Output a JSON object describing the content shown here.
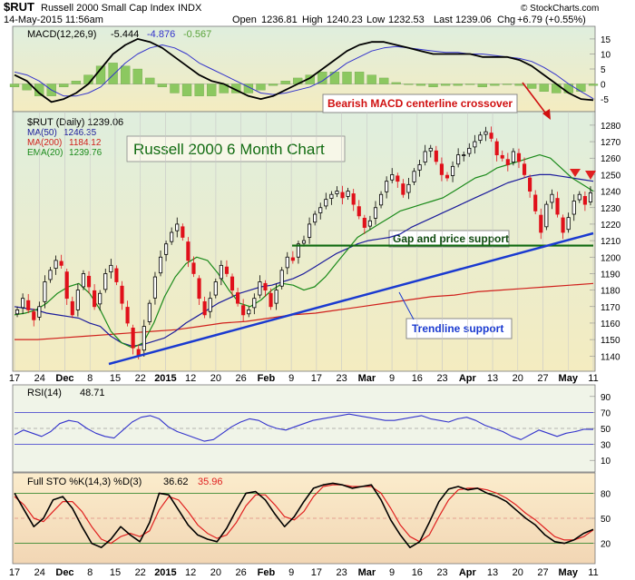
{
  "header": {
    "symbol": "$RUT",
    "name": "Russell 2000 Small Cap Index",
    "exchange": "INDX",
    "date": "14-May-2015 11:56am",
    "open_label": "Open",
    "open": "1236.81",
    "high_label": "High",
    "high": "1240.23",
    "low_label": "Low",
    "low": "1232.53",
    "last_label": "Last",
    "last": "1239.06",
    "chg_label": "Chg",
    "chg": "+6.79 (+0.55%)",
    "copyright": "© StockCharts.com"
  },
  "colors": {
    "bg_gradient_top": "#dfeede",
    "bg_gradient_bottom": "#f4ecc0",
    "up_candle": "#000000",
    "down_candle": "#e0101a",
    "ma50": "#1c1c9c",
    "ma200": "#d0201c",
    "ema20": "#1a8a1a",
    "trendline": "#1a3ad0",
    "support": "#0f6a0f",
    "macd_line": "#000000",
    "macd_signal": "#3333cc",
    "histogram": "#8cc860",
    "rsi_line": "#3333cc",
    "sto_k": "#000000",
    "sto_d": "#e02020"
  },
  "chart_data": [
    {
      "type": "bar",
      "panel": "MACD",
      "label": "MACD(12,26,9)",
      "values_label": [
        "-5.444",
        "-4.876",
        "-0.567"
      ],
      "y_ticks": [
        15,
        10,
        5,
        0,
        -5
      ],
      "ylim": [
        -8,
        18
      ],
      "macd": [
        3,
        1,
        -3,
        -6,
        -5,
        -3,
        0,
        5,
        10,
        13,
        15,
        14,
        12,
        9,
        6,
        3,
        1,
        0,
        -2,
        -4,
        -5,
        -4,
        -2,
        0,
        2,
        5,
        8,
        11,
        13,
        14,
        14,
        13,
        12,
        11,
        10,
        10,
        10,
        10,
        9,
        9,
        9,
        8,
        6,
        3,
        0,
        -3,
        -5,
        -5.4
      ],
      "signal": [
        4,
        3,
        1,
        -2,
        -4,
        -4,
        -3,
        -1,
        3,
        7,
        10,
        12,
        13,
        12,
        10,
        7,
        5,
        3,
        1,
        -1,
        -3,
        -3.5,
        -3,
        -2,
        -1,
        1,
        4,
        7,
        9,
        11,
        12,
        12.5,
        12,
        11.5,
        11,
        10.5,
        10.5,
        10,
        10,
        9.5,
        9,
        8.5,
        7.5,
        5.5,
        3,
        0,
        -2.5,
        -4.9
      ]
    },
    {
      "type": "line",
      "panel": "Price",
      "label": "$RUT (Daily) 1239.06",
      "title": "Russell 2000 6 Month Chart",
      "legend": [
        {
          "name": "MA(50)",
          "value": "1246.35"
        },
        {
          "name": "MA(200)",
          "value": "1184.12"
        },
        {
          "name": "EMA(20)",
          "value": "1239.76"
        }
      ],
      "y_ticks": [
        1280,
        1270,
        1260,
        1250,
        1240,
        1230,
        1220,
        1210,
        1200,
        1190,
        1180,
        1170,
        1160,
        1150,
        1140
      ],
      "ylim": [
        1133,
        1286
      ],
      "close": [
        1168,
        1175,
        1168,
        1162,
        1170,
        1185,
        1192,
        1198,
        1195,
        1175,
        1165,
        1180,
        1190,
        1182,
        1170,
        1178,
        1190,
        1195,
        1185,
        1172,
        1160,
        1145,
        1140,
        1158,
        1172,
        1188,
        1200,
        1208,
        1215,
        1220,
        1212,
        1198,
        1190,
        1175,
        1165,
        1175,
        1185,
        1195,
        1190,
        1180,
        1172,
        1165,
        1168,
        1175,
        1185,
        1180,
        1170,
        1180,
        1192,
        1200,
        1198,
        1208,
        1210,
        1220,
        1226,
        1230,
        1235,
        1238,
        1240,
        1236,
        1240,
        1232,
        1225,
        1218,
        1222,
        1230,
        1238,
        1246,
        1250,
        1246,
        1238,
        1244,
        1252,
        1256,
        1264,
        1266,
        1258,
        1250,
        1248,
        1255,
        1262,
        1262,
        1266,
        1270,
        1274,
        1276,
        1272,
        1262,
        1260,
        1256,
        1264,
        1258,
        1250,
        1240,
        1228,
        1215,
        1232,
        1238,
        1226,
        1215,
        1224,
        1234,
        1238,
        1232,
        1239
      ],
      "ma50": [
        1170,
        1169,
        1168,
        1166,
        1165,
        1164,
        1163,
        1160,
        1158,
        1152,
        1148,
        1146,
        1147,
        1149,
        1151,
        1155,
        1160,
        1164,
        1168,
        1172,
        1175,
        1178,
        1180,
        1182,
        1183,
        1185,
        1187,
        1190,
        1194,
        1198,
        1202,
        1205,
        1208,
        1210,
        1211,
        1212,
        1214,
        1218,
        1221,
        1224,
        1227,
        1230,
        1233,
        1236,
        1239,
        1242,
        1245,
        1247,
        1249,
        1250,
        1250,
        1249,
        1248,
        1247,
        1246
      ],
      "ma200": [
        1150,
        1150,
        1151,
        1152,
        1153,
        1154,
        1155,
        1156,
        1158,
        1160,
        1161,
        1163,
        1165,
        1166,
        1168,
        1170,
        1172,
        1174,
        1176,
        1177,
        1179,
        1180,
        1181,
        1182,
        1183,
        1184
      ],
      "ema20": [
        1165,
        1166,
        1168,
        1172,
        1178,
        1182,
        1184,
        1178,
        1168,
        1155,
        1148,
        1145,
        1148,
        1160,
        1176,
        1188,
        1196,
        1200,
        1198,
        1190,
        1180,
        1172,
        1170,
        1174,
        1180,
        1184,
        1183,
        1180,
        1182,
        1188,
        1196,
        1204,
        1212,
        1216,
        1220,
        1224,
        1228,
        1230,
        1232,
        1234,
        1236,
        1240,
        1244,
        1248,
        1250,
        1254,
        1256,
        1258,
        1260,
        1262,
        1260,
        1254,
        1248,
        1244,
        1240
      ],
      "support_level": 1207,
      "annotations": [
        {
          "text": "Bearish MACD centerline crossover"
        },
        {
          "text": "Gap and price support"
        },
        {
          "text": "Trendline support"
        }
      ]
    },
    {
      "type": "line",
      "panel": "RSI",
      "label": "RSI(14)",
      "value": "48.71",
      "y_ticks": [
        90,
        70,
        50,
        30,
        10
      ],
      "ylim": [
        0,
        100
      ],
      "guides": [
        70,
        30
      ],
      "rsi": [
        42,
        48,
        44,
        40,
        46,
        56,
        60,
        58,
        50,
        44,
        40,
        38,
        48,
        58,
        64,
        66,
        62,
        52,
        46,
        42,
        38,
        34,
        36,
        44,
        52,
        58,
        62,
        60,
        54,
        50,
        48,
        52,
        56,
        60,
        62,
        64,
        66,
        68,
        66,
        64,
        62,
        60,
        60,
        62,
        64,
        66,
        62,
        60,
        58,
        62,
        64,
        60,
        54,
        50,
        46,
        40,
        36,
        42,
        48,
        44,
        40,
        44,
        46,
        49,
        48.7
      ]
    },
    {
      "type": "line",
      "panel": "Full STO",
      "label": "Full STO %K(14,3) %D(3)",
      "values_label": [
        "36.62",
        "35.96"
      ],
      "y_ticks": [
        80,
        50,
        20
      ],
      "ylim": [
        0,
        100
      ],
      "guides": [
        80,
        20
      ],
      "k": [
        80,
        60,
        40,
        50,
        72,
        76,
        62,
        40,
        20,
        15,
        25,
        40,
        30,
        22,
        45,
        80,
        78,
        60,
        42,
        30,
        25,
        22,
        38,
        60,
        80,
        82,
        72,
        55,
        40,
        52,
        70,
        86,
        90,
        92,
        90,
        86,
        88,
        90,
        72,
        48,
        30,
        15,
        22,
        45,
        70,
        85,
        88,
        84,
        86,
        80,
        76,
        70,
        60,
        50,
        42,
        30,
        22,
        20,
        24,
        32,
        36.6
      ],
      "d": [
        76,
        66,
        50,
        46,
        58,
        70,
        70,
        58,
        40,
        25,
        20,
        28,
        32,
        28,
        35,
        60,
        76,
        72,
        58,
        42,
        32,
        26,
        30,
        45,
        65,
        78,
        78,
        66,
        52,
        48,
        58,
        76,
        88,
        90,
        90,
        88,
        88,
        88,
        80,
        62,
        42,
        28,
        22,
        30,
        52,
        72,
        84,
        86,
        86,
        84,
        80,
        74,
        66,
        56,
        48,
        38,
        28,
        24,
        24,
        28,
        35.96
      ]
    }
  ],
  "x_axis_labels": [
    "17",
    "24",
    "Dec",
    "8",
    "15",
    "22",
    "2015",
    "12",
    "20",
    "26",
    "Feb",
    "9",
    "17",
    "23",
    "Mar",
    "9",
    "16",
    "23",
    "Apr",
    "13",
    "20",
    "27",
    "May",
    "11"
  ]
}
